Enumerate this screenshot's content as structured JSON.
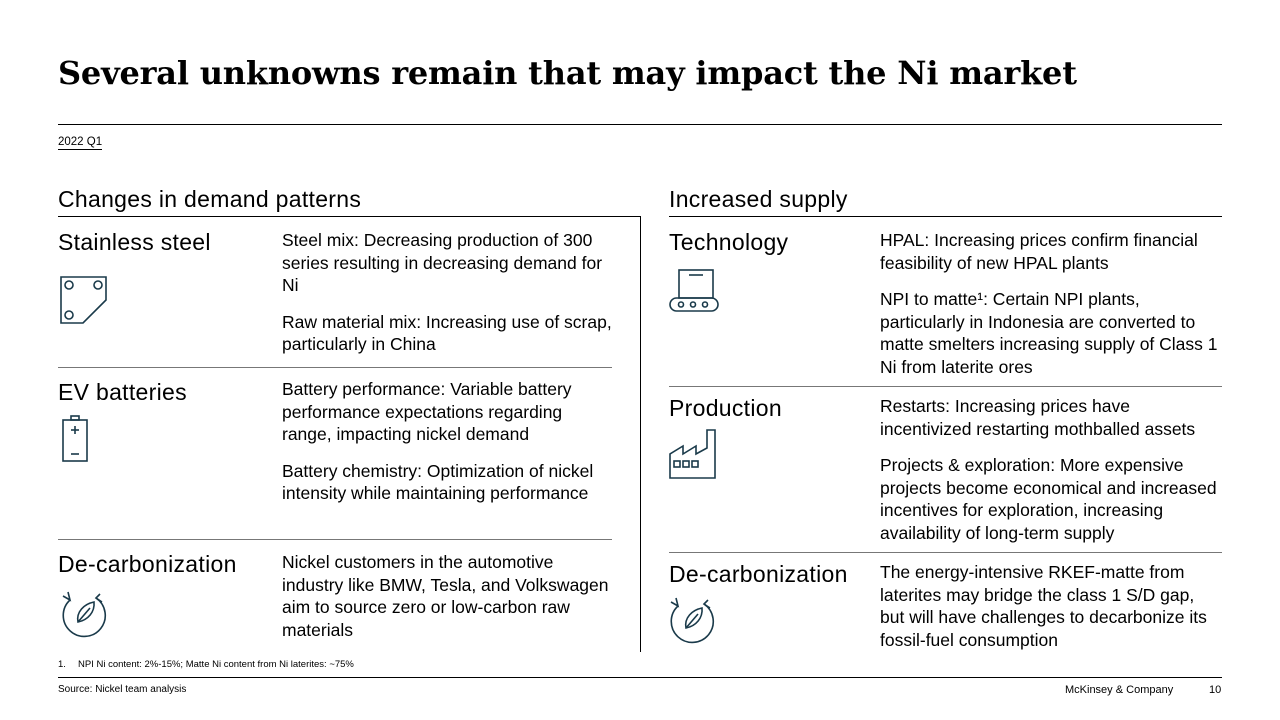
{
  "title": "Several unknowns remain that may impact the Ni market",
  "date": "2022 Q1",
  "left": {
    "heading": "Changes in demand patterns",
    "rows": [
      {
        "category": "Stainless steel",
        "icon": "stainless-steel-plate-icon",
        "items": [
          "Steel mix: Decreasing production of 300 series resulting in decreasing demand for Ni",
          "Raw material mix: Increasing use of scrap, particularly in China"
        ]
      },
      {
        "category": "EV batteries",
        "icon": "battery-icon",
        "items": [
          "Battery performance: Variable battery performance expectations regarding range, impacting nickel demand",
          "Battery chemistry: Optimization of nickel intensity while maintaining performance"
        ]
      },
      {
        "category": "De-carbonization",
        "icon": "recycle-leaf-icon",
        "items": [
          "Nickel customers in the automotive industry like BMW, Tesla, and Volkswagen aim to source zero or low-carbon raw materials"
        ]
      }
    ]
  },
  "right": {
    "heading": "Increased supply",
    "rows": [
      {
        "category": "Technology",
        "icon": "conveyor-belt-icon",
        "items": [
          "HPAL: Increasing prices confirm financial feasibility of new HPAL plants",
          "NPI to matte¹: Certain NPI plants, particularly in Indonesia are converted to matte smelters increasing supply of Class 1 Ni from laterite ores"
        ]
      },
      {
        "category": "Production",
        "icon": "factory-icon",
        "items": [
          "Restarts: Increasing prices have incentivized restarting mothballed assets",
          "Projects & exploration: More expensive projects become economical and increased incentives for exploration, increasing availability of long-term supply"
        ]
      },
      {
        "category": "De-carbonization",
        "icon": "recycle-leaf-icon",
        "items": [
          "The energy-intensive RKEF-matte from laterites may bridge the class 1 S/D gap, but will have challenges to decarbonize its fossil-fuel consumption"
        ]
      }
    ]
  },
  "footnote": {
    "number": "1.",
    "text": "NPI Ni content: 2%-15%; Matte Ni content from Ni laterites: ~75%"
  },
  "source": "Source: Nickel team analysis",
  "company": "McKinsey & Company",
  "page_number": "10"
}
